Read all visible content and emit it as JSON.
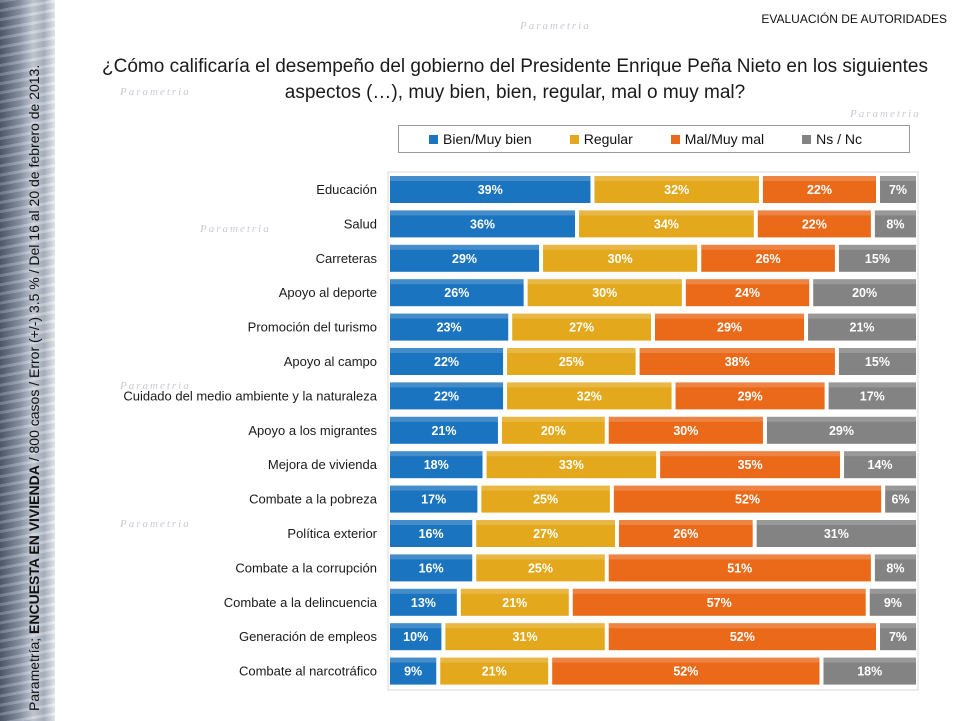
{
  "header": {
    "section_title": "EVALUACIÓN DE AUTORIDADES"
  },
  "side_note": {
    "prefix": "Parametría;",
    "survey_name": "ENCUESTA EN VIVIENDA",
    "details": "/ 800 casos / Error (+/-) 3.5 % / Del 16 al 20 de febrero de 2013."
  },
  "watermark": "Parametria",
  "colors": {
    "bien_muy_bien": "#1b74bf",
    "regular": "#e3a81b",
    "mal_muy_mal": "#ea6a1a",
    "ns_nc": "#838383"
  },
  "chart_data": {
    "type": "bar",
    "orientation": "horizontal",
    "stacked": true,
    "title": "¿Cómo calificaría el desempeño del gobierno del Presidente Enrique Peña Nieto en los siguientes aspectos (…), muy bien, bien, regular, mal o muy mal?",
    "legend_position": "top",
    "unit": "%",
    "categories": [
      "Educación",
      "Salud",
      "Carreteras",
      "Apoyo al deporte",
      "Promoción del turismo",
      "Apoyo al campo",
      "Cuidado del medio ambiente y la naturaleza",
      "Apoyo a los migrantes",
      "Mejora de vivienda",
      "Combate a la pobreza",
      "Política exterior",
      "Combate a la corrupción",
      "Combate a la delincuencia",
      "Generación de empleos",
      "Combate al narcotráfico"
    ],
    "series": [
      {
        "name": "Bien/Muy bien",
        "color": "#1b74bf",
        "values": [
          39,
          36,
          29,
          26,
          23,
          22,
          22,
          21,
          18,
          17,
          16,
          16,
          13,
          10,
          9
        ]
      },
      {
        "name": "Regular",
        "color": "#e3a81b",
        "values": [
          32,
          34,
          30,
          30,
          27,
          25,
          32,
          20,
          33,
          25,
          27,
          25,
          21,
          31,
          21
        ]
      },
      {
        "name": "Mal/Muy mal",
        "color": "#ea6a1a",
        "values": [
          22,
          22,
          26,
          24,
          29,
          38,
          29,
          30,
          35,
          52,
          26,
          51,
          57,
          52,
          52
        ]
      },
      {
        "name": "Ns / Nc",
        "color": "#838383",
        "values": [
          7,
          8,
          15,
          20,
          21,
          15,
          17,
          29,
          14,
          6,
          31,
          8,
          9,
          7,
          18
        ]
      }
    ]
  }
}
